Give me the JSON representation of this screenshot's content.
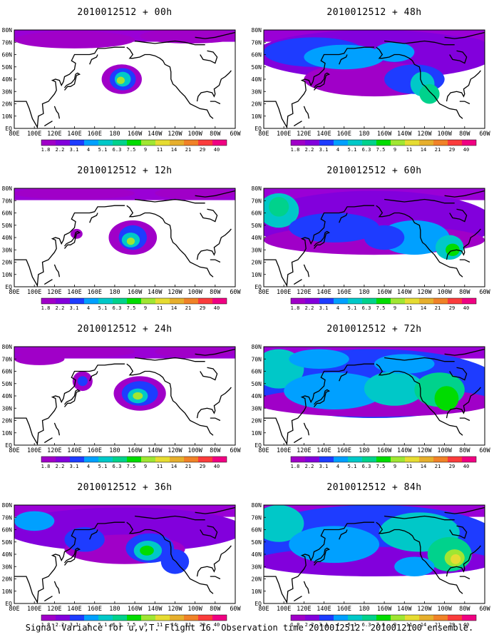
{
  "caption": "Signal Variance for u,v,T. Flight 16. Observation time 2010012512. 2010012100 ensemble.",
  "x_axis_labels": [
    "80E",
    "100E",
    "120E",
    "140E",
    "160E",
    "180",
    "160W",
    "140W",
    "120W",
    "100W",
    "80W",
    "60W"
  ],
  "y_axis_labels": [
    "EQ",
    "10N",
    "20N",
    "30N",
    "40N",
    "50N",
    "60N",
    "70N",
    "80N"
  ],
  "colorbar": {
    "labels": [
      "1.8",
      "2.2",
      "3.1",
      "4",
      "5.1",
      "6.3",
      "7.5",
      "9",
      "11",
      "14",
      "21",
      "29",
      "40"
    ],
    "colors": [
      "#a000c8",
      "#8200dc",
      "#1e3cff",
      "#00a0ff",
      "#00c8c8",
      "#00d28c",
      "#00dc00",
      "#a0e632",
      "#e6dc32",
      "#e6af2d",
      "#f08228",
      "#fa3c3c",
      "#f00082"
    ]
  },
  "panels": [
    {
      "title": "2010012512 + 00h",
      "name": "panel-00h"
    },
    {
      "title": "2010012512 + 48h",
      "name": "panel-48h"
    },
    {
      "title": "2010012512 + 12h",
      "name": "panel-12h"
    },
    {
      "title": "2010012512 + 60h",
      "name": "panel-60h"
    },
    {
      "title": "2010012512 + 24h",
      "name": "panel-24h"
    },
    {
      "title": "2010012512 + 72h",
      "name": "panel-72h"
    },
    {
      "title": "2010012512 + 36h",
      "name": "panel-36h"
    },
    {
      "title": "2010012512 + 84h",
      "name": "panel-84h"
    }
  ]
}
